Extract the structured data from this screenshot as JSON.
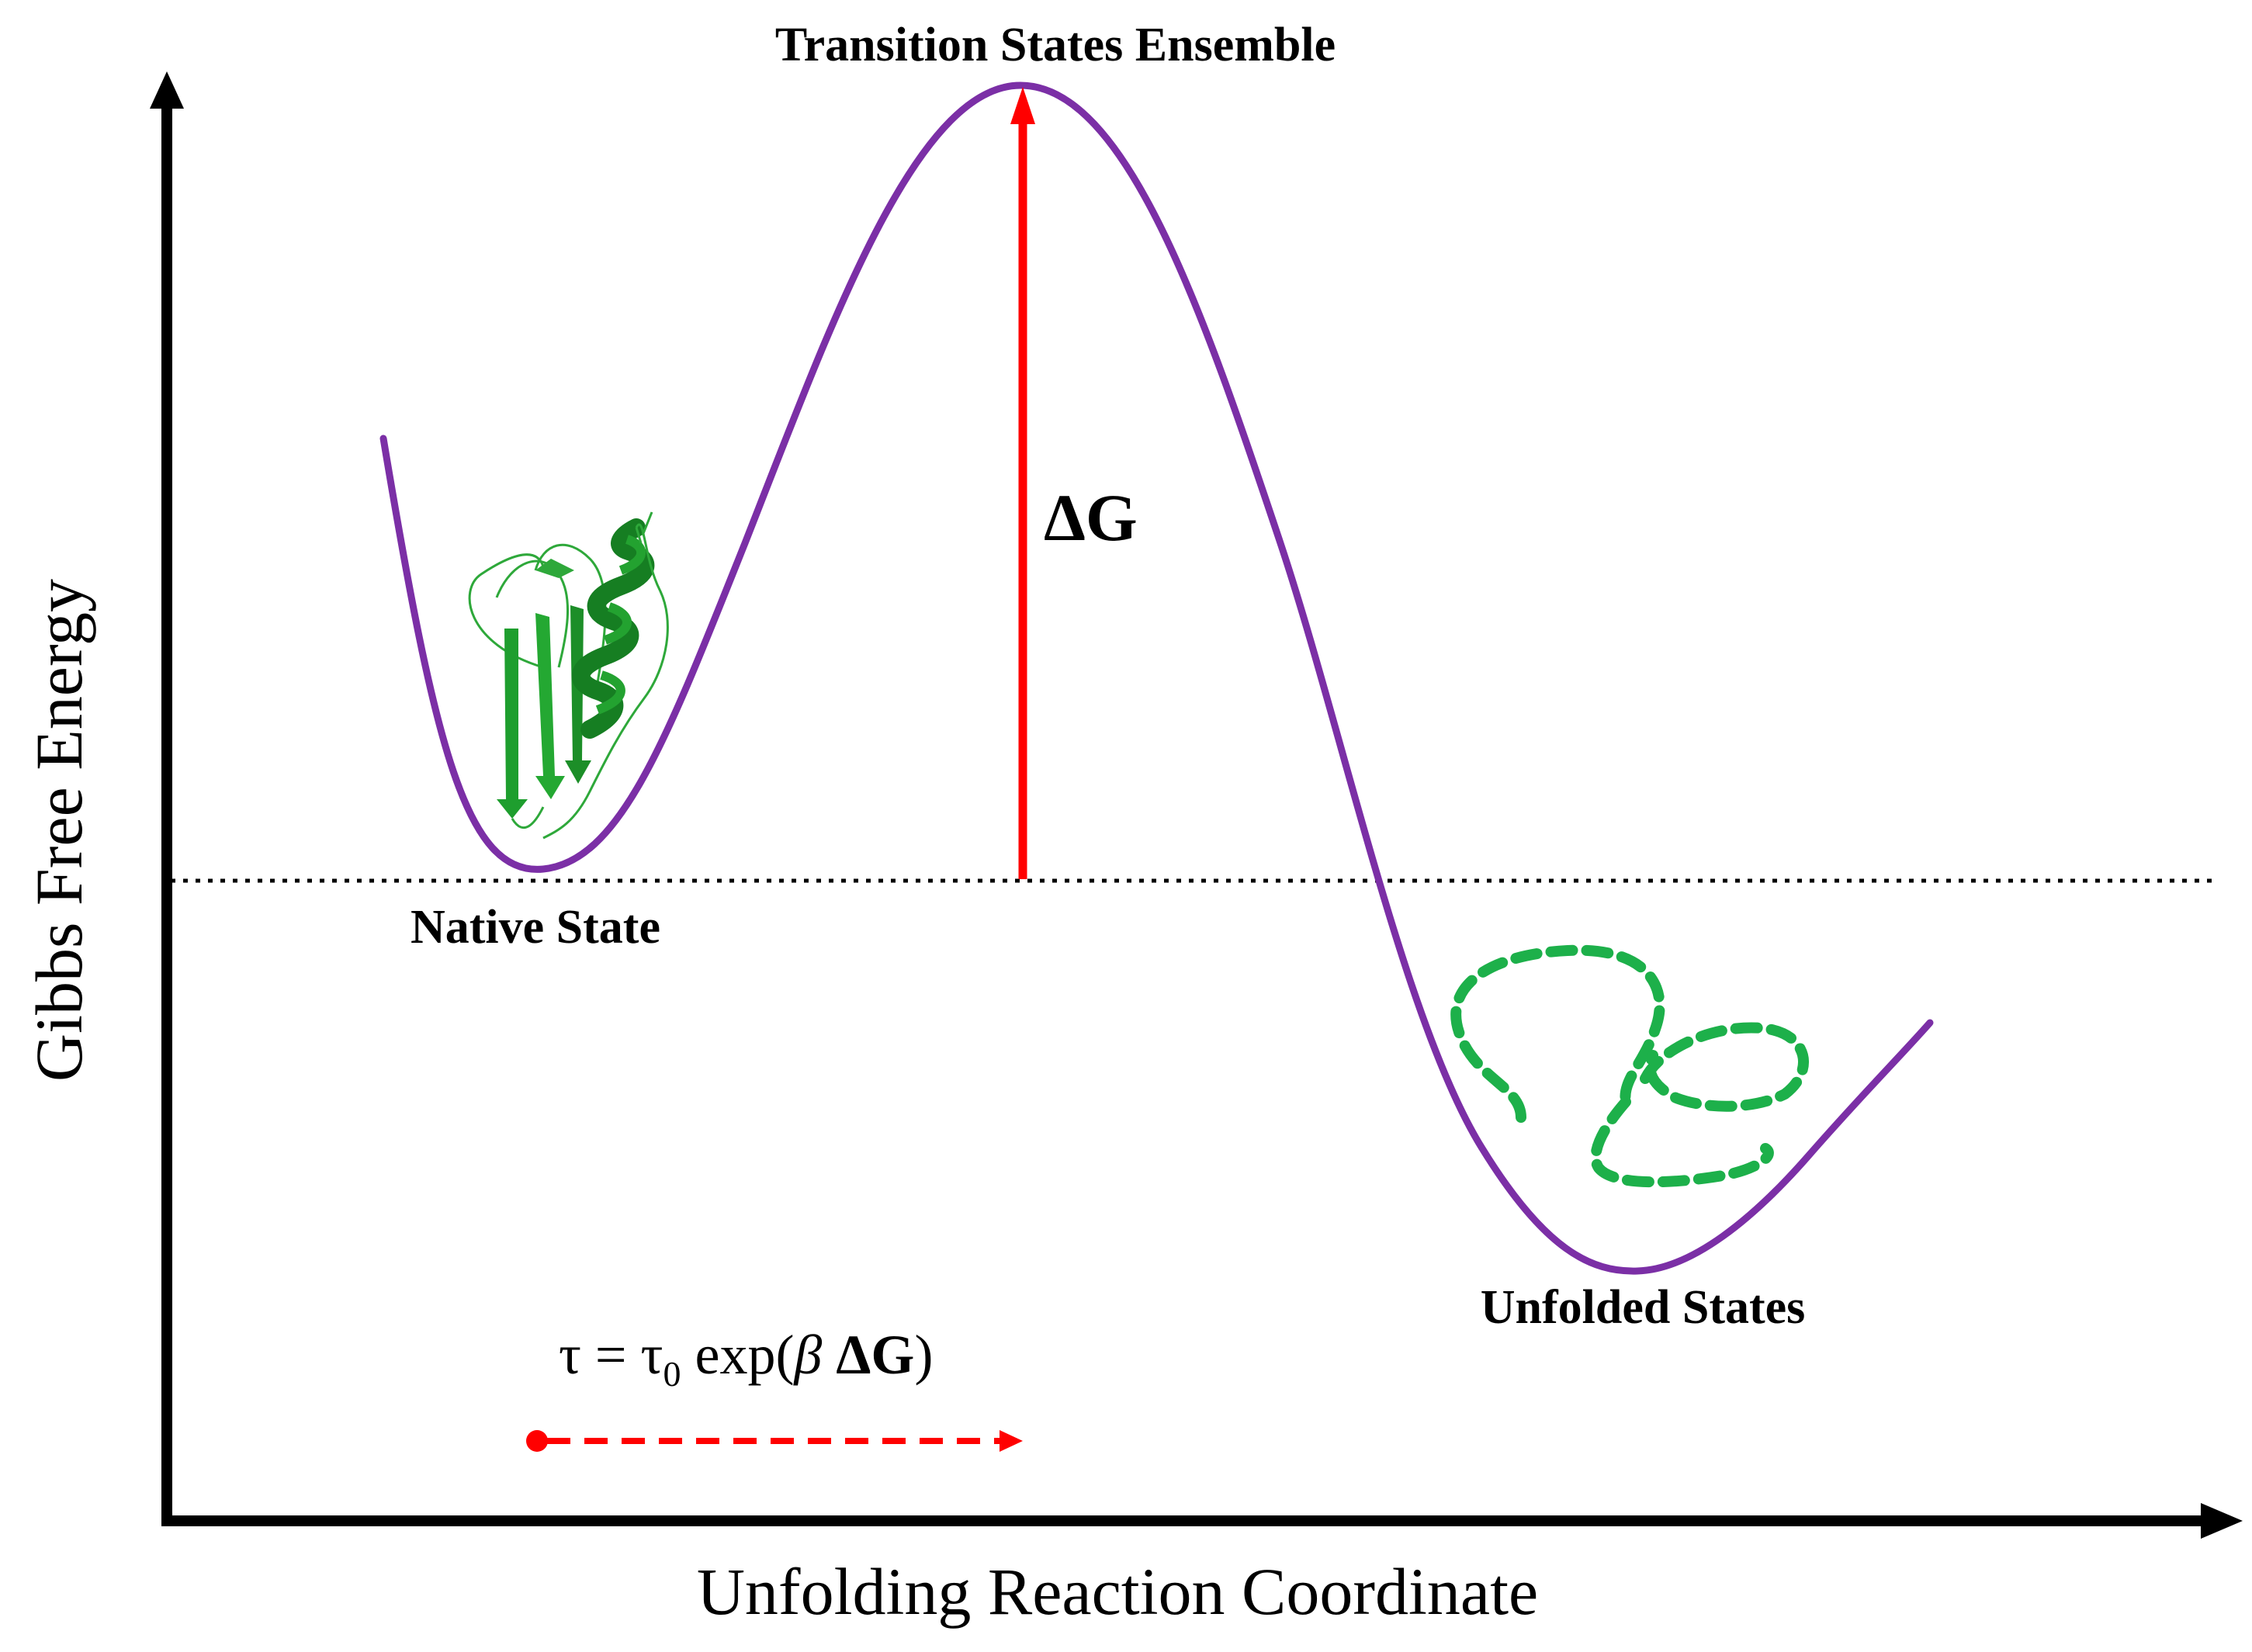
{
  "diagram": {
    "y_axis_label": "Gibbs Free Energy",
    "x_axis_label": "Unfolding Reaction Coordinate",
    "labels": {
      "transition": "Transition States Ensemble",
      "native": "Native State",
      "unfolded": "Unfolded States",
      "delta_g": "ΔG"
    },
    "equation": {
      "lhs": "τ = τ",
      "subscript": "0",
      "func": " exp(",
      "beta": "β",
      "space": " ",
      "dg": "ΔG",
      "close": ")"
    },
    "icons": {
      "folded_protein": "folded-protein-ribbon-icon",
      "unfolded_chain": "unfolded-chain-icon"
    },
    "colors": {
      "curve": "#7B2FA6",
      "barrier_arrow": "#FF0000",
      "protein": "#1E9E2E",
      "unfolded_chain": "#1DB04A",
      "axes": "#000000"
    }
  }
}
